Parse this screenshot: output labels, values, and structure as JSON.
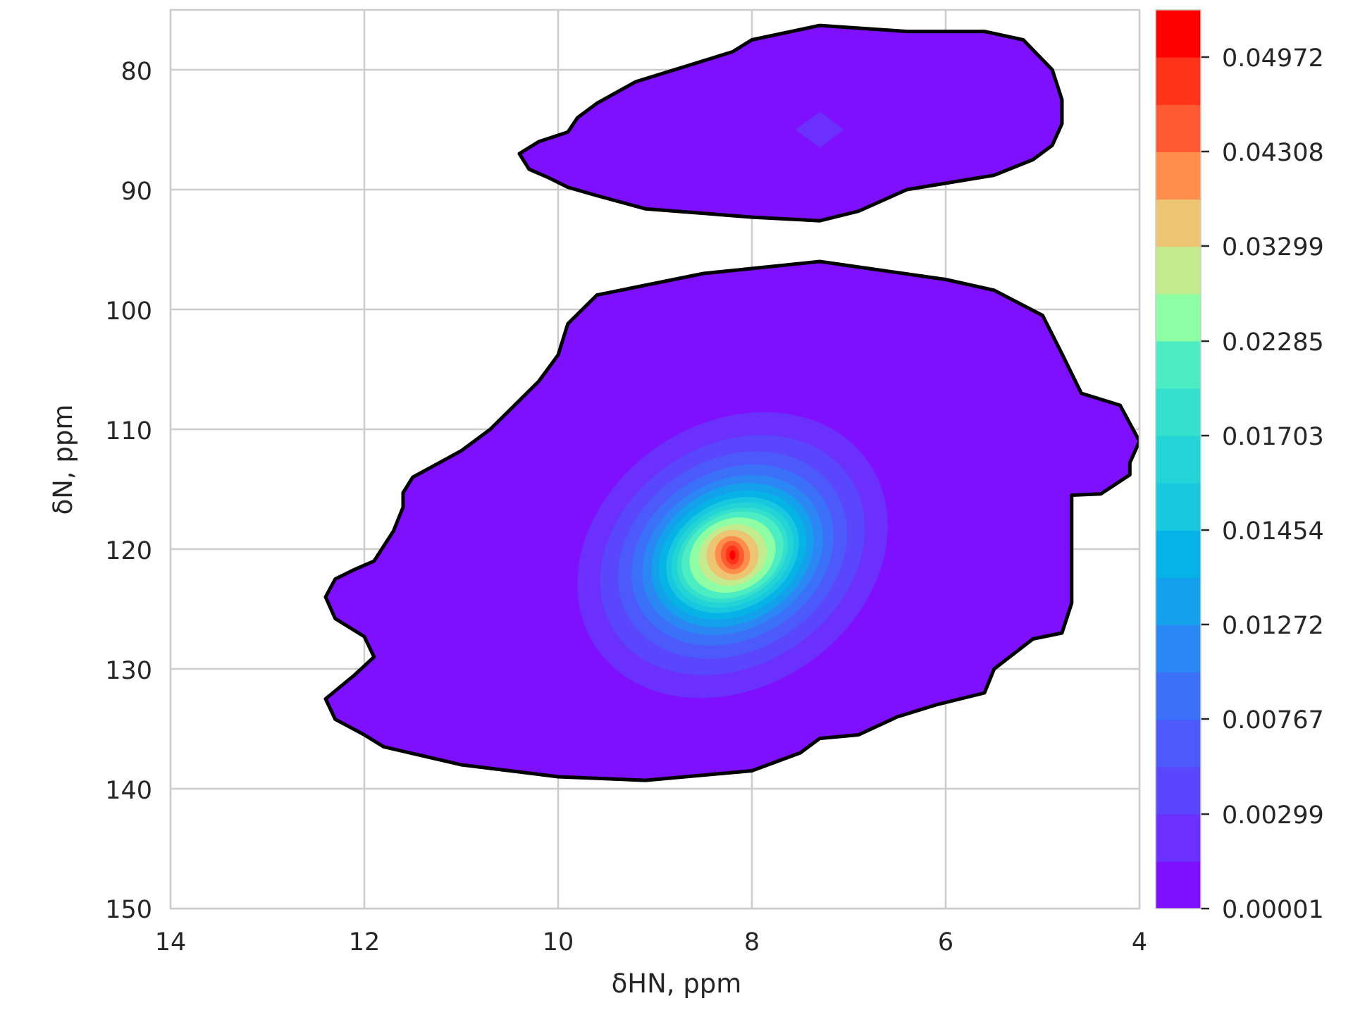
{
  "chart_data": {
    "type": "contour",
    "title": "",
    "xlabel": "δHN, ppm",
    "ylabel": "δN, ppm",
    "xlim": [
      14,
      4
    ],
    "ylim": [
      150,
      75
    ],
    "x_ticks": [
      14,
      12,
      10,
      8,
      6,
      4
    ],
    "y_ticks": [
      80,
      90,
      100,
      110,
      120,
      130,
      140,
      150
    ],
    "grid": true,
    "colormap": "rainbow",
    "colorbar": {
      "tick_labels": [
        "0.00001",
        "0.00299",
        "0.00767",
        "0.01272",
        "0.01454",
        "0.01703",
        "0.02285",
        "0.03299",
        "0.04308",
        "0.04972"
      ],
      "band_colors": [
        "#7f0fff",
        "#6b30fe",
        "#5a46fd",
        "#4c5afb",
        "#3b71f8",
        "#2a87f3",
        "#14a1ec",
        "#06b3e7",
        "#18c8df",
        "#22d4d6",
        "#34dfcd",
        "#4cedc2",
        "#8efea4",
        "#c4eb8d",
        "#ecc472",
        "#ff8e4c",
        "#ff5b33",
        "#ff3318",
        "#ff0000"
      ]
    },
    "clusters": [
      {
        "name": "upper",
        "center": [
          7.3,
          85.0
        ],
        "outline_x": [
          10.4,
          10.2,
          9.9,
          9.8,
          9.6,
          9.2,
          8.2,
          8.0,
          7.3,
          6.4,
          5.6,
          5.2,
          4.9,
          4.8,
          4.8,
          4.9,
          5.1,
          5.5,
          6.4,
          6.9,
          7.3,
          8.0,
          9.1,
          9.6,
          9.9,
          10.1,
          10.3,
          10.4
        ]
      },
      {
        "name": "lower",
        "center": [
          8.2,
          120.5
        ],
        "peak_value": 0.05,
        "outline_x": [
          12.4,
          12.3,
          12.1,
          11.9,
          11.7,
          11.6,
          11.6,
          11.5,
          11.0,
          10.7,
          10.2,
          10.0,
          9.9,
          9.6,
          8.5,
          7.3,
          6.0,
          5.5,
          5.0,
          4.8,
          4.6,
          4.2,
          4.0,
          4.1,
          4.1,
          4.4,
          4.7,
          4.7,
          4.8,
          5.1,
          5.5,
          5.6,
          6.1,
          6.5,
          6.9,
          7.3,
          7.5,
          8.0,
          9.1,
          10.0,
          11.0,
          11.8,
          12.0,
          12.3,
          12.4,
          12.1,
          11.9,
          12.0,
          12.3
        ]
      }
    ]
  }
}
